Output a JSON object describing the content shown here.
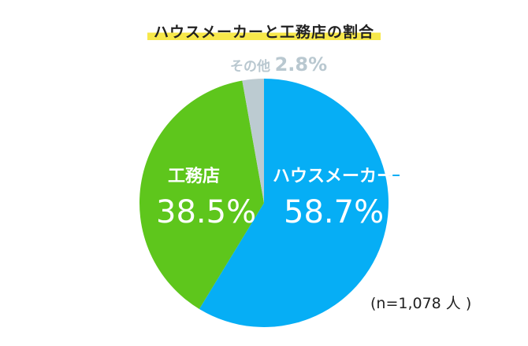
{
  "chart_data": {
    "type": "pie",
    "title": "ハウスメーカーと工務店の割合",
    "slices": [
      {
        "name": "ハウスメーカー",
        "value": 58.7,
        "label": "58.7%",
        "color": "#06aef5"
      },
      {
        "name": "工務店",
        "value": 38.5,
        "label": "38.5%",
        "color": "#5ec61c"
      },
      {
        "name": "その他",
        "value": 2.8,
        "label": "2.8%",
        "color": "#bccbd1"
      }
    ],
    "note": "(n=1,078 人 )"
  }
}
